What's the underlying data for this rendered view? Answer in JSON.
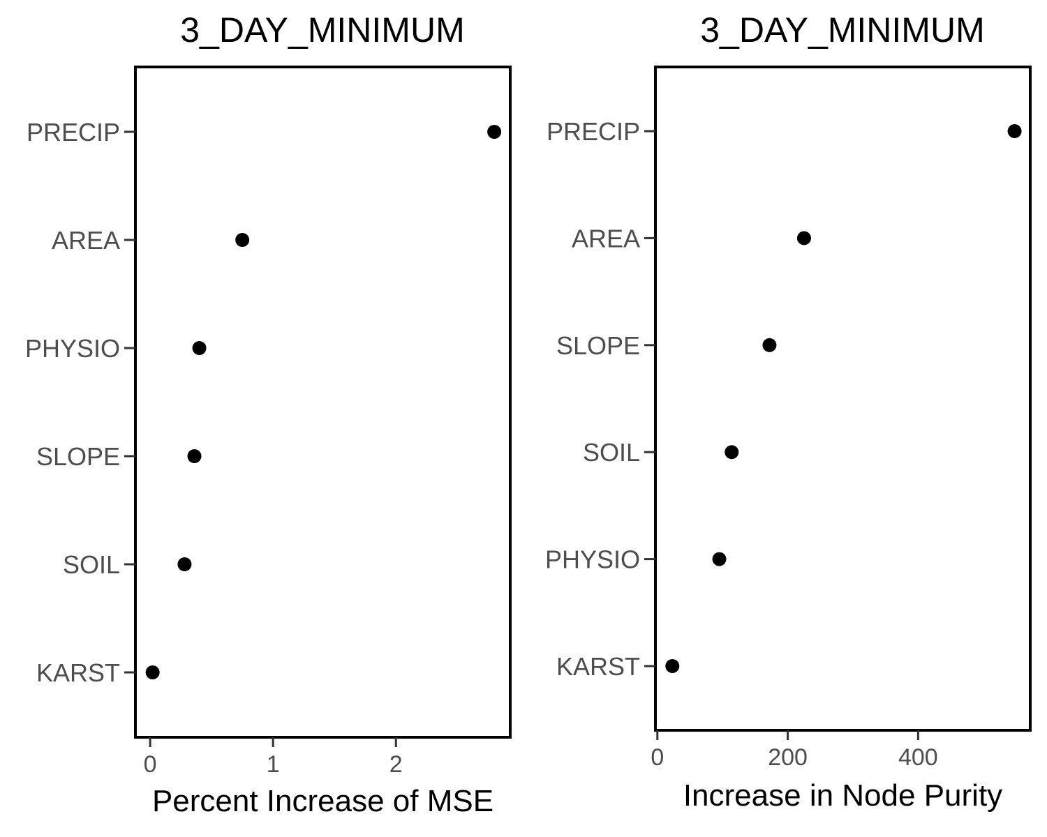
{
  "chart_data": [
    {
      "type": "scatter",
      "title": "3_DAY_MINIMUM",
      "xlabel": "Percent Increase of MSE",
      "ylabel": "",
      "xlim": [
        -0.12,
        2.93
      ],
      "xticks": [
        0,
        1,
        2
      ],
      "grid": false,
      "categories": [
        "PRECIP",
        "AREA",
        "PHYSIO",
        "SLOPE",
        "SOIL",
        "KARST"
      ],
      "values": [
        2.8,
        0.75,
        0.4,
        0.36,
        0.28,
        0.02
      ]
    },
    {
      "type": "scatter",
      "title": "3_DAY_MINIMUM",
      "xlabel": "Increase in Node Purity",
      "ylabel": "",
      "xlim": [
        -3,
        572
      ],
      "xticks": [
        0,
        200,
        400
      ],
      "grid": false,
      "categories": [
        "PRECIP",
        "AREA",
        "SLOPE",
        "SOIL",
        "PHYSIO",
        "KARST"
      ],
      "values": [
        548,
        225,
        172,
        114,
        95,
        23
      ]
    }
  ]
}
